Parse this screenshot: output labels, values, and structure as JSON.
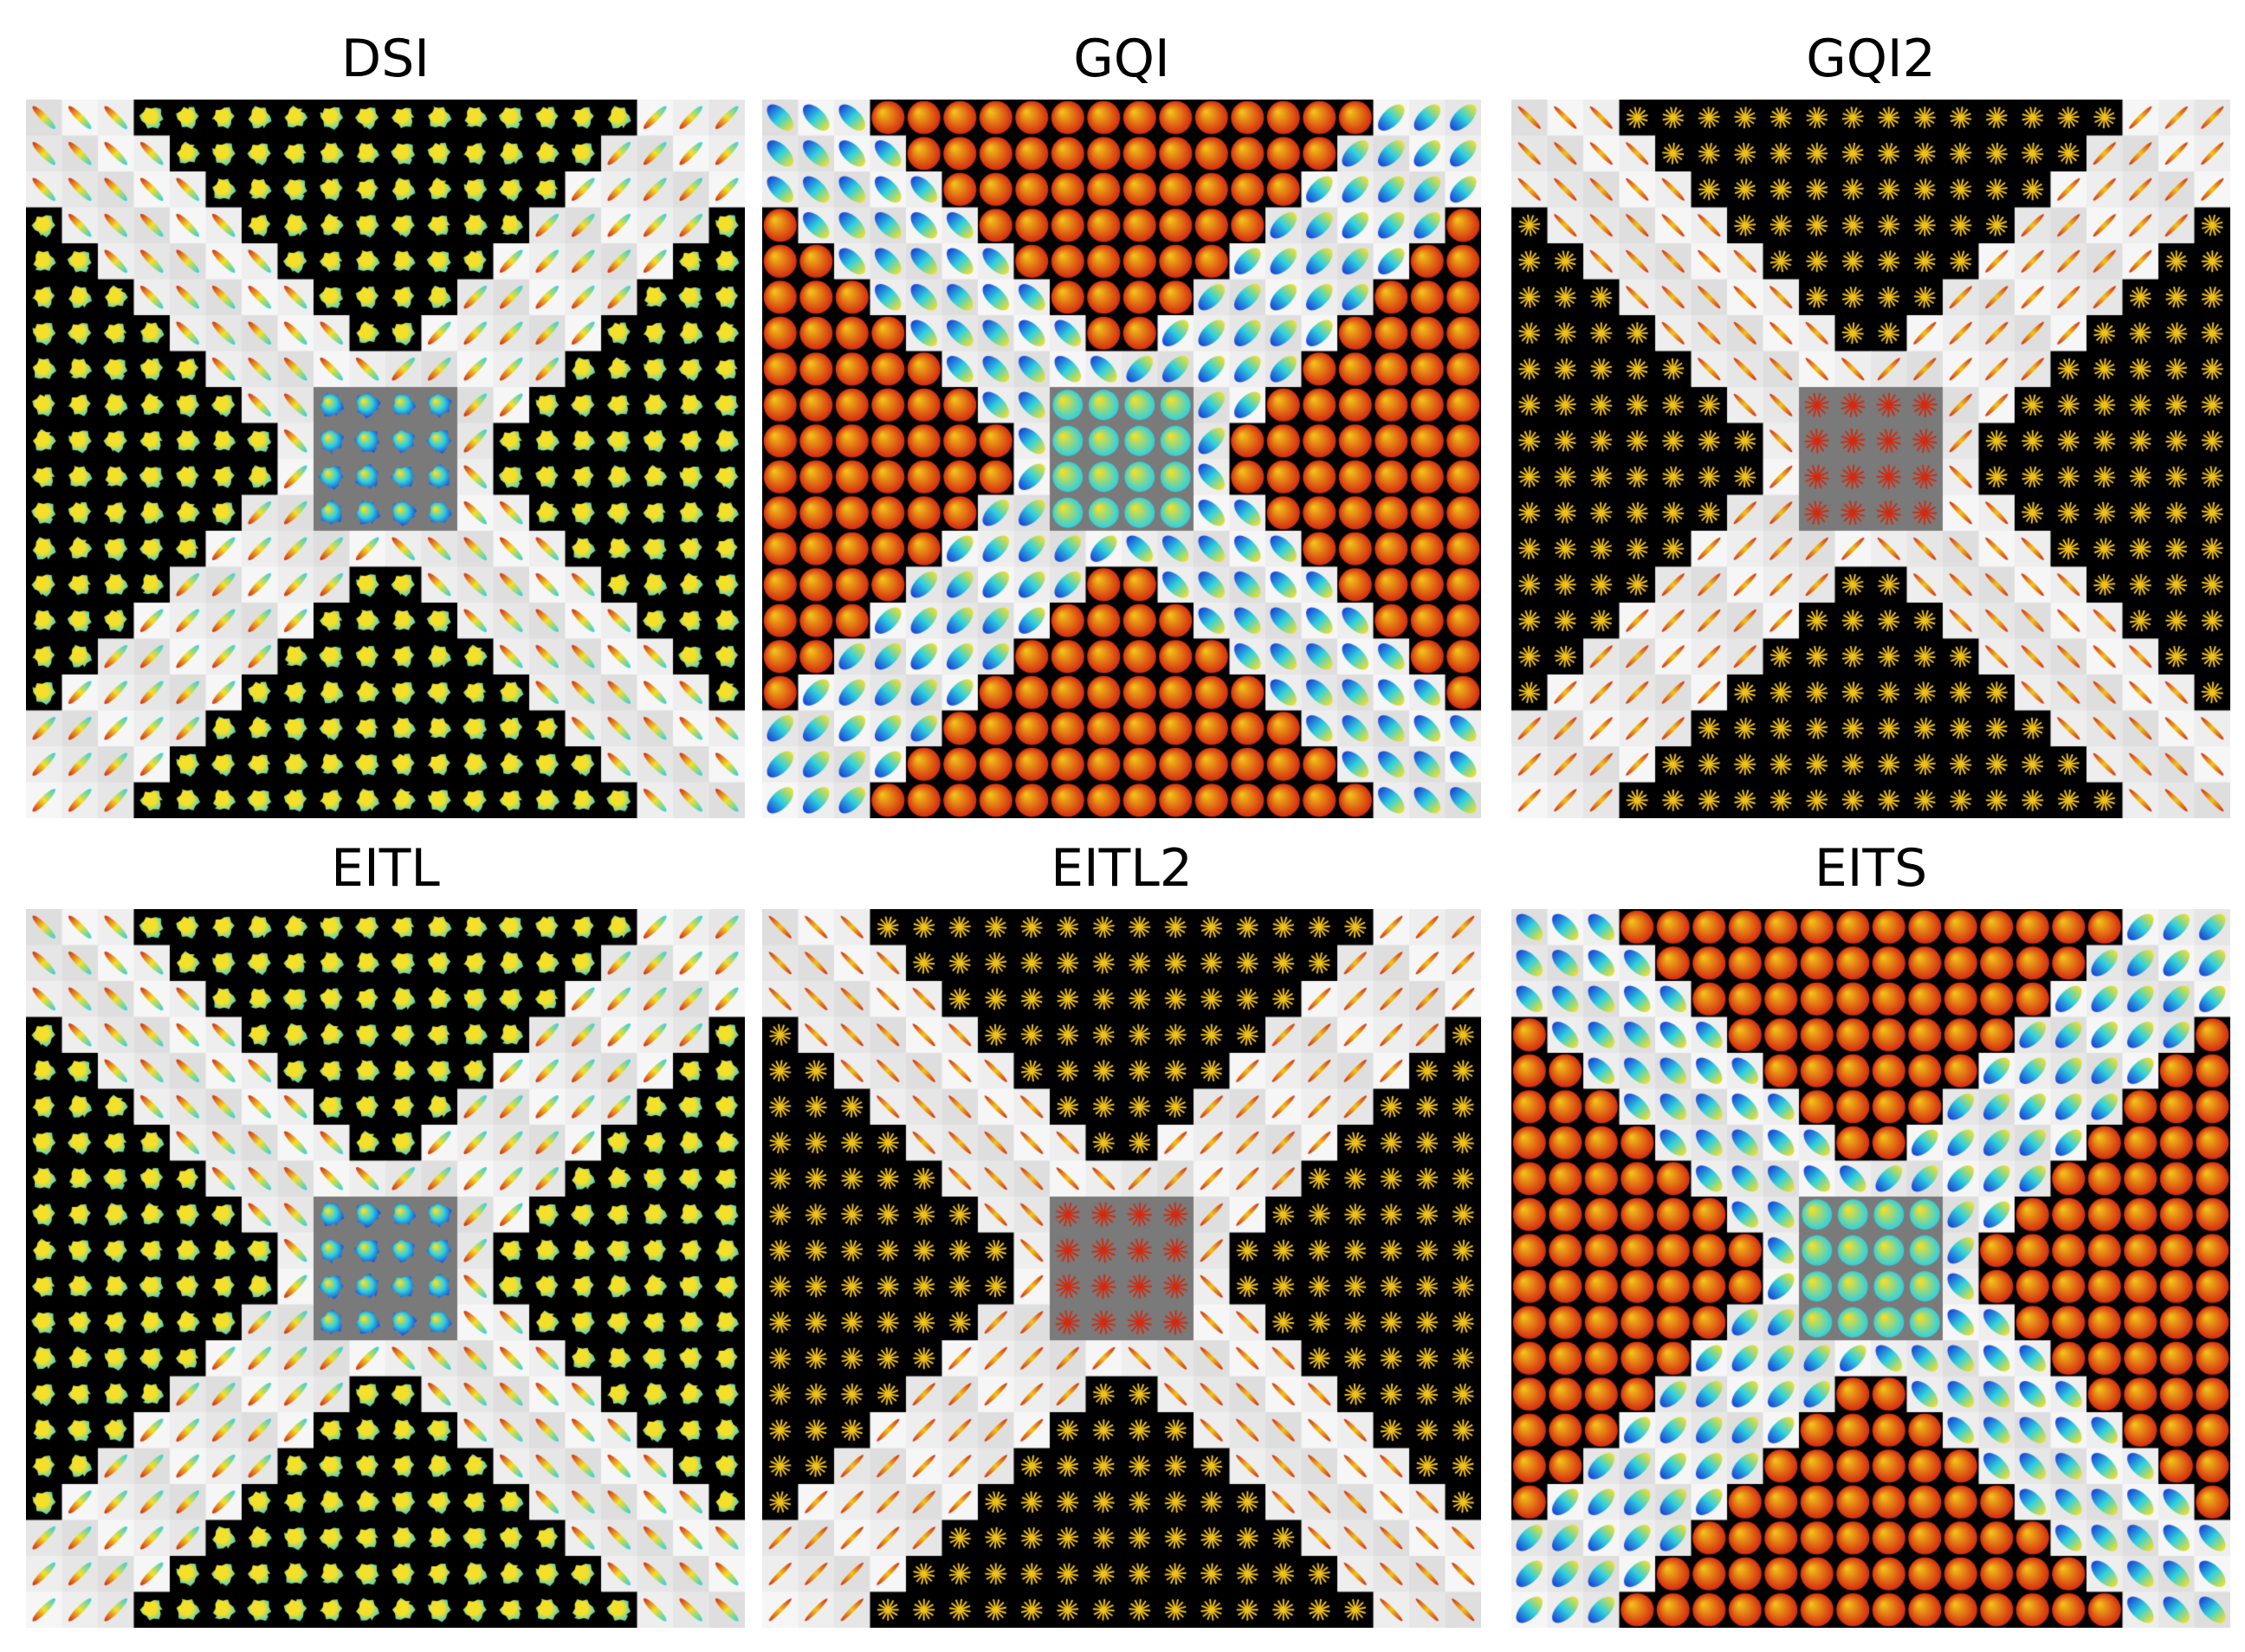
{
  "figure": {
    "panels": [
      {
        "title": "DSI",
        "style": "spiky-jet"
      },
      {
        "title": "GQI",
        "style": "sphere-hot"
      },
      {
        "title": "GQI2",
        "style": "star-thin"
      },
      {
        "title": "EITL",
        "style": "spiky-jet"
      },
      {
        "title": "EITL2",
        "style": "star-thin"
      },
      {
        "title": "EITS",
        "style": "sphere-hot"
      }
    ],
    "grid_size": 20,
    "colors": {
      "background_black": "#000000",
      "crossing_gray": "#7a7a7a",
      "fiber_light": "#e6e6e6",
      "hot_red": "#d42a10",
      "hot_yellow": "#f2c21a",
      "jet_blue": "#1a3fd6",
      "jet_cyan": "#2fd0e0",
      "jet_yellow": "#f4e02a"
    }
  }
}
